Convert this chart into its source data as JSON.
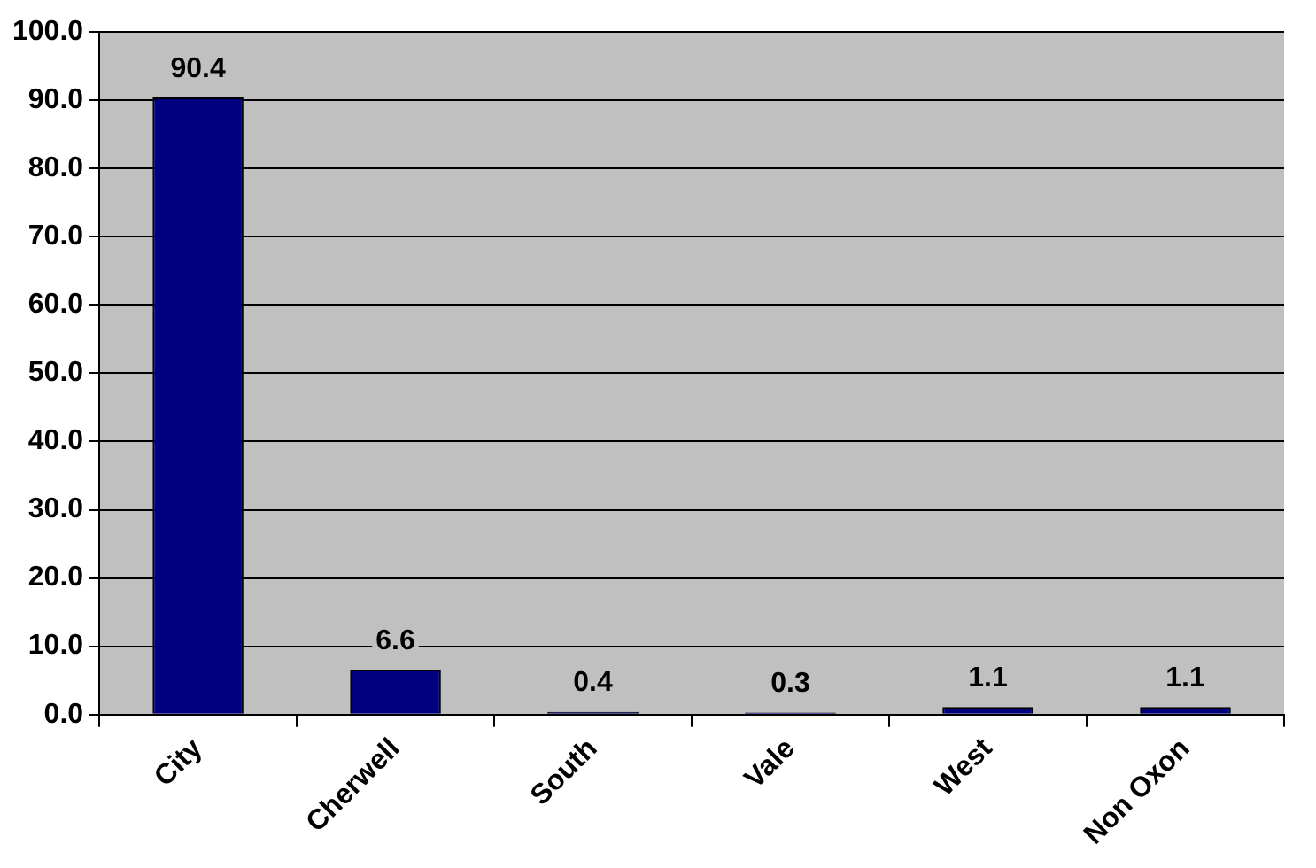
{
  "chart_data": {
    "type": "bar",
    "categories": [
      "City",
      "Cherwell",
      "South",
      "Vale",
      "West",
      "Non Oxon"
    ],
    "values": [
      90.4,
      6.6,
      0.4,
      0.3,
      1.1,
      1.1
    ],
    "color": "#000080",
    "ylim": [
      0,
      100
    ],
    "yticks": [
      {
        "value": 0,
        "label": "0.0"
      },
      {
        "value": 10,
        "label": "10.0"
      },
      {
        "value": 20,
        "label": "20.0"
      },
      {
        "value": 30,
        "label": "30.0"
      },
      {
        "value": 40,
        "label": "40.0"
      },
      {
        "value": 50,
        "label": "50.0"
      },
      {
        "value": 60,
        "label": "60.0"
      },
      {
        "value": 70,
        "label": "70.0"
      },
      {
        "value": 80,
        "label": "80.0"
      },
      {
        "value": 90,
        "label": "90.0"
      },
      {
        "value": 100,
        "label": "100.0"
      }
    ],
    "grid": "y",
    "data_labels": true,
    "legend": false
  }
}
